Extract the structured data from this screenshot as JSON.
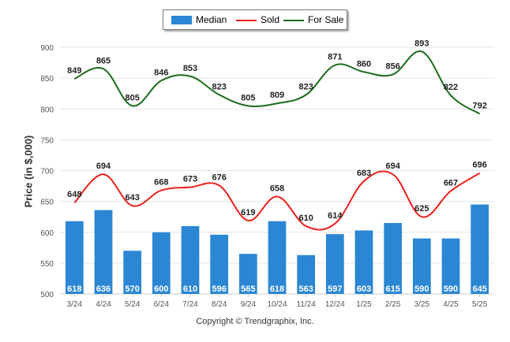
{
  "legend": {
    "median_label": "Median",
    "sold_label": "Sold",
    "forsale_label": "For Sale"
  },
  "copyright": "Copyright © Trendgraphix, Inc.",
  "colors": {
    "median": "#2b87d3",
    "sold": "#e8211c",
    "forsale": "#1a6b1a",
    "grid": "#e6e6e6",
    "axis_text": "#555555"
  },
  "chart_data": {
    "type": "bar",
    "categories": [
      "3/24",
      "4/24",
      "5/24",
      "6/24",
      "7/24",
      "8/24",
      "9/24",
      "10/24",
      "11/24",
      "12/24",
      "1/25",
      "2/25",
      "3/25",
      "4/25",
      "5/25"
    ],
    "series": [
      {
        "name": "Median",
        "type": "bar",
        "values": [
          618,
          636,
          570,
          600,
          610,
          596,
          565,
          618,
          563,
          597,
          603,
          615,
          590,
          590,
          645
        ]
      },
      {
        "name": "Sold",
        "type": "line",
        "values": [
          648,
          694,
          643,
          668,
          673,
          676,
          619,
          658,
          610,
          614,
          683,
          694,
          625,
          667,
          696
        ]
      },
      {
        "name": "For Sale",
        "type": "line",
        "values": [
          849,
          865,
          805,
          846,
          853,
          823,
          805,
          809,
          823,
          871,
          860,
          856,
          893,
          822,
          792
        ]
      }
    ],
    "ylabel": "Price (in $,000)",
    "xlabel": "",
    "ylim": [
      500,
      900
    ],
    "yticks": [
      500,
      550,
      600,
      650,
      700,
      750,
      800,
      850,
      900
    ],
    "grid": true,
    "legend_position": "top-center"
  }
}
